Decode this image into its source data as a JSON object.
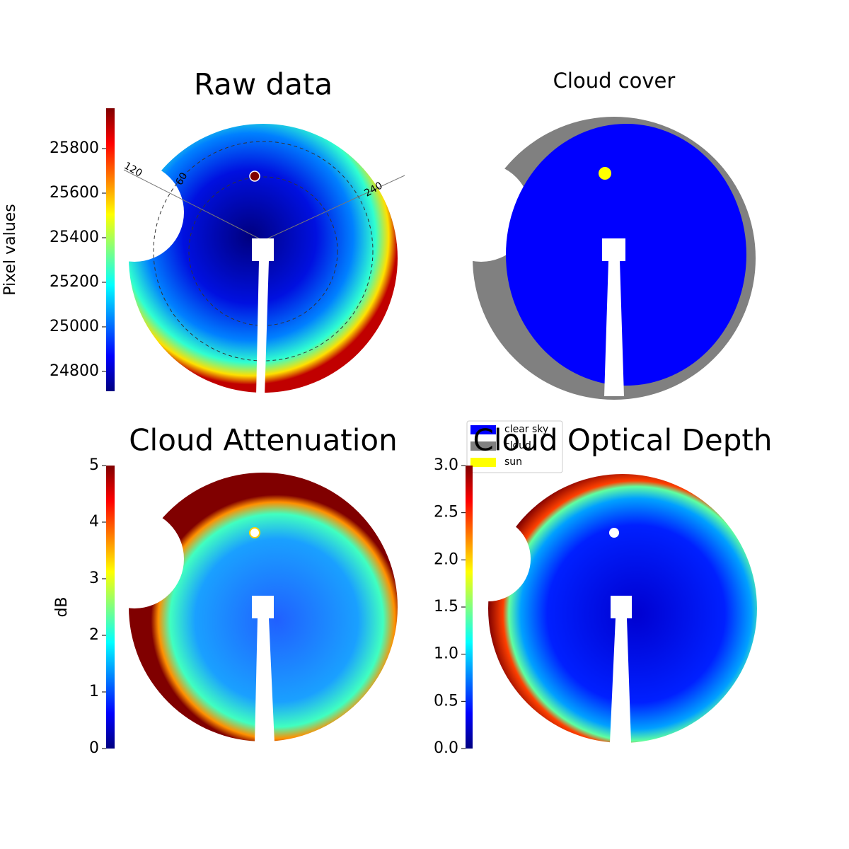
{
  "chart_data": [
    {
      "type": "image",
      "title": "Raw data",
      "colorbar": {
        "label": "Pixel values",
        "ylim": [
          24711,
          25981
        ],
        "yticks": [
          24800,
          25000,
          25200,
          25400,
          25600,
          25800
        ]
      },
      "annotations": [
        "120",
        "60",
        "240"
      ]
    },
    {
      "type": "image",
      "title": "Cloud cover",
      "legend": [
        {
          "name": "clear sky",
          "color": "#0000ff"
        },
        {
          "name": "cloud",
          "color": "#808080"
        },
        {
          "name": "sun",
          "color": "#ffff00"
        }
      ]
    },
    {
      "type": "image",
      "title": "Cloud Attenuation",
      "colorbar": {
        "label": "dB",
        "ylim": [
          0,
          5
        ],
        "yticks": [
          0,
          1,
          2,
          3,
          4,
          5
        ]
      }
    },
    {
      "type": "image",
      "title": "Cloud Optical Depth",
      "colorbar": {
        "ylim": [
          0,
          3
        ],
        "yticks": [
          {
            "value": 0,
            "label": "0.0"
          },
          {
            "value": 0.5,
            "label": "0.5"
          },
          {
            "value": 1,
            "label": "1.0"
          },
          {
            "value": 1.5,
            "label": "1.5"
          },
          {
            "value": 2,
            "label": "2.0"
          },
          {
            "value": 2.5,
            "label": "2.5"
          },
          {
            "value": 3,
            "label": "3.0"
          }
        ]
      }
    }
  ]
}
